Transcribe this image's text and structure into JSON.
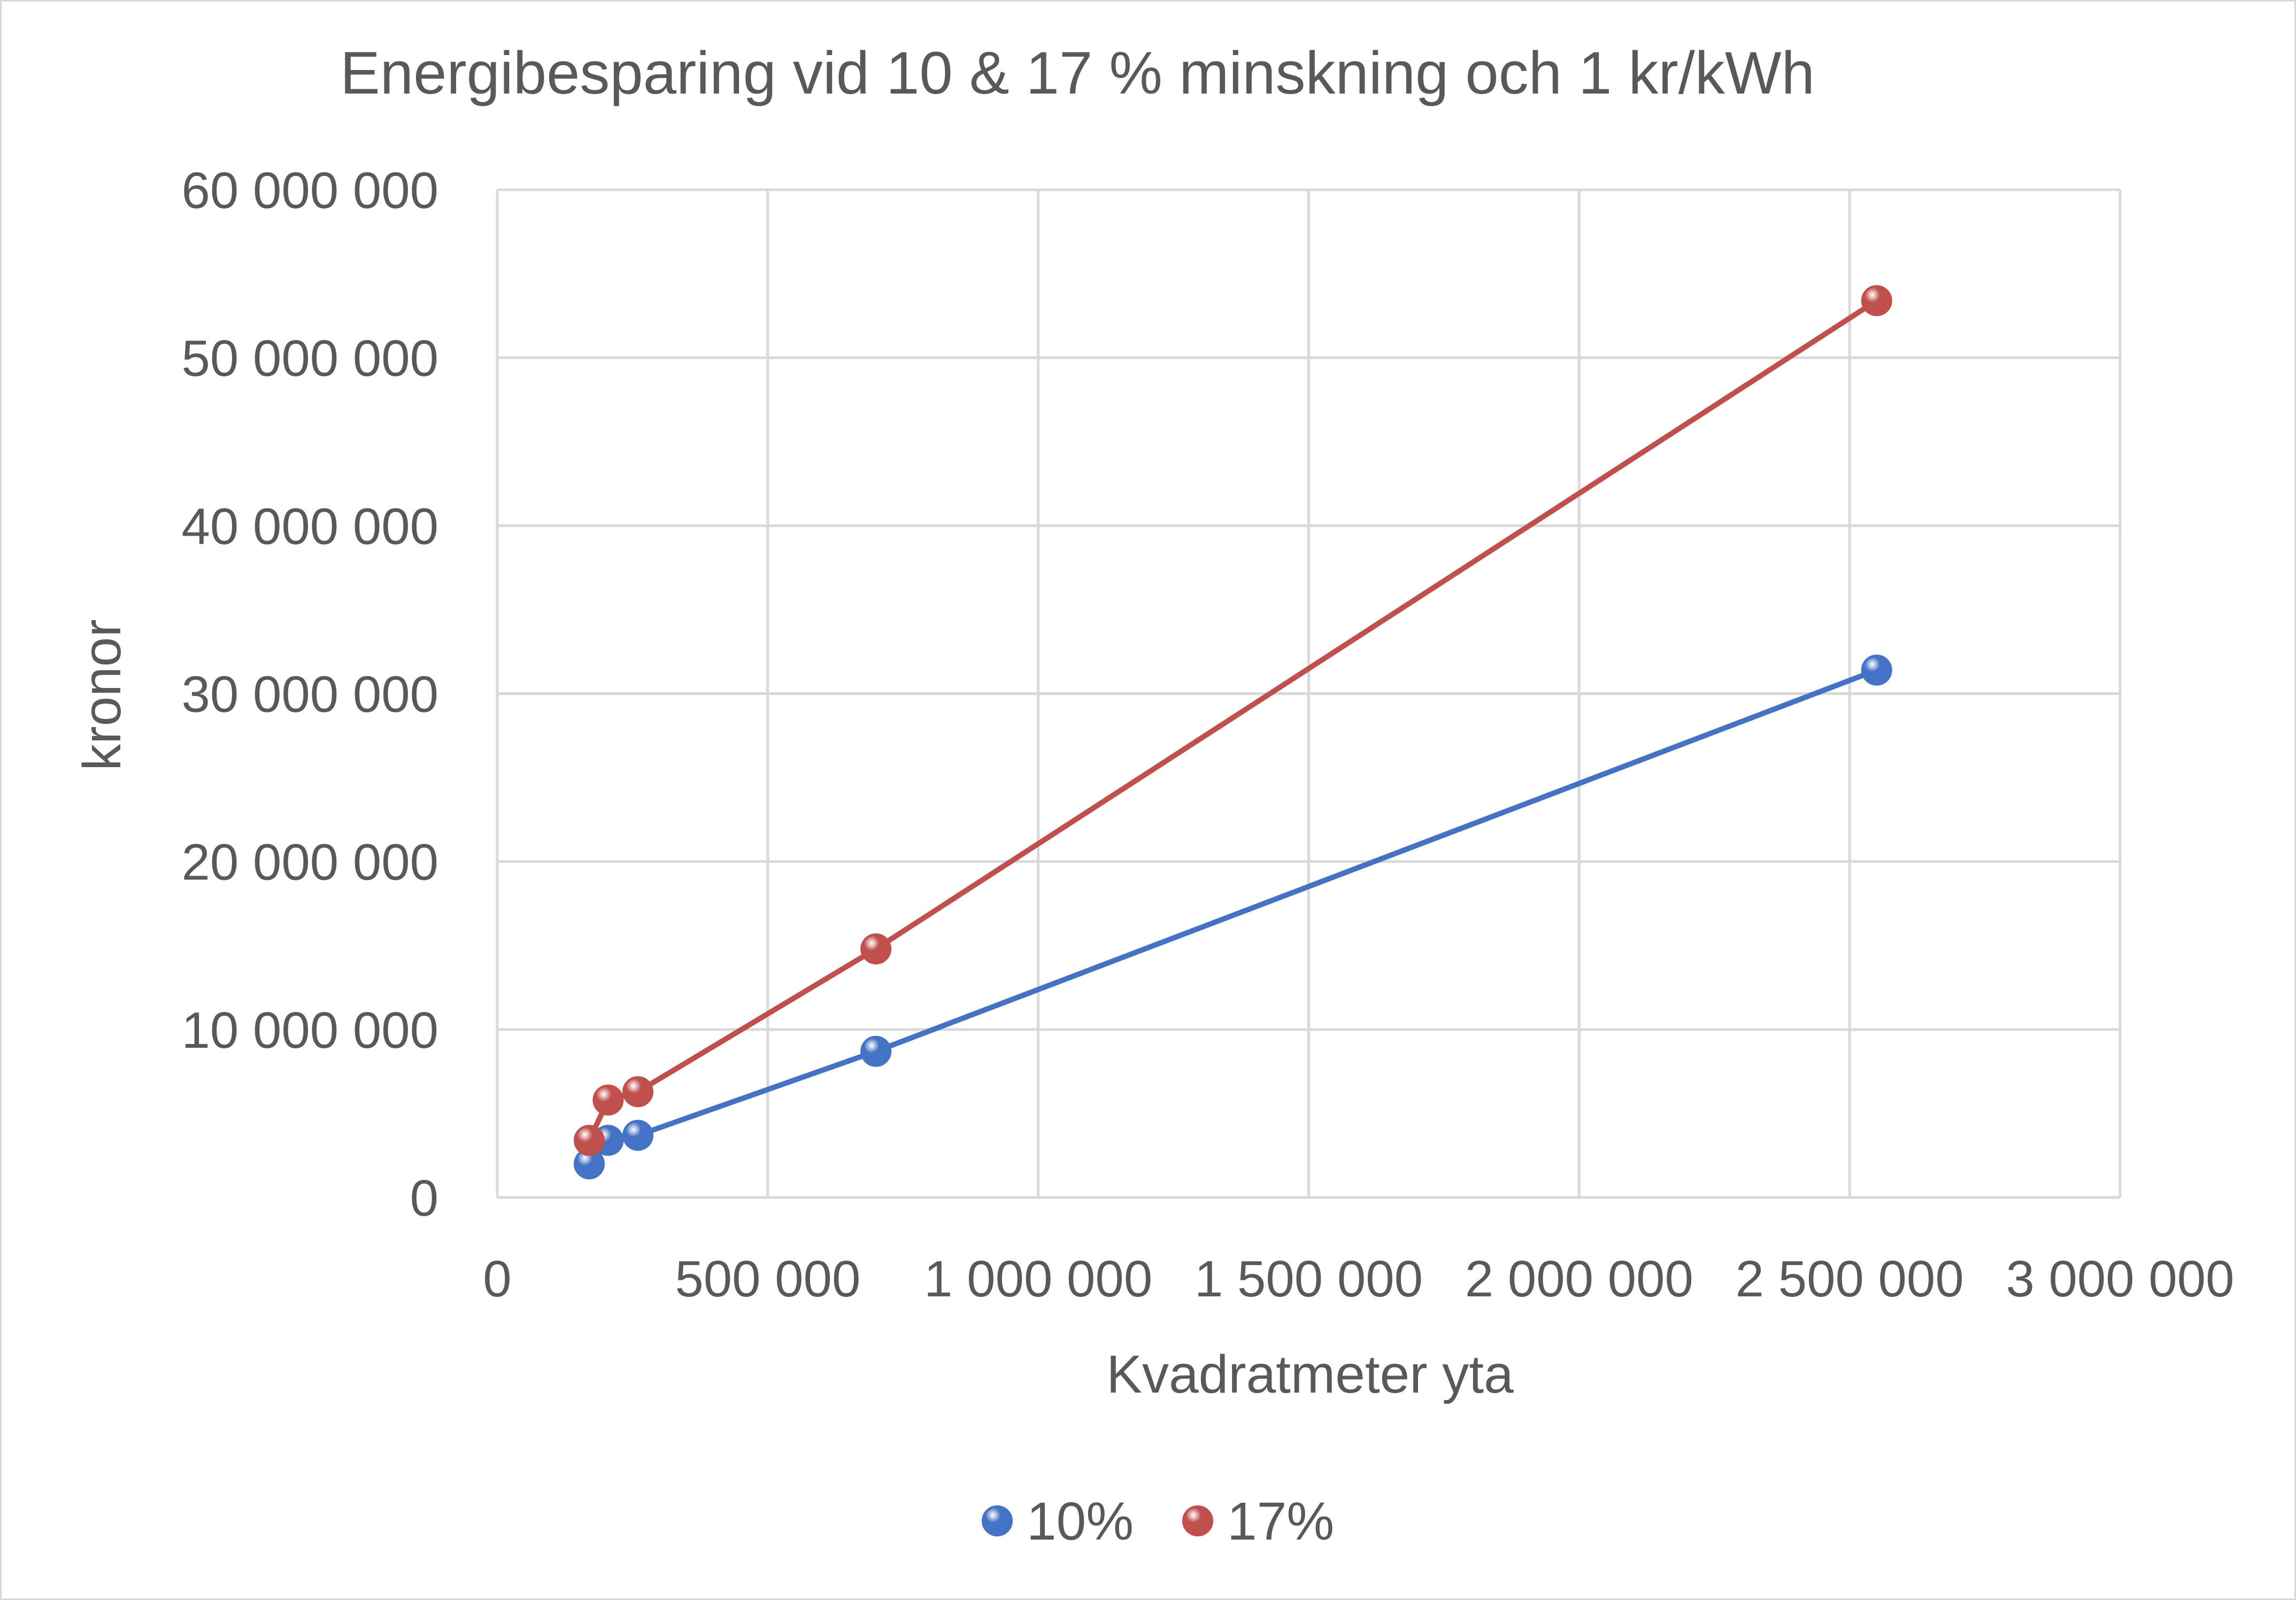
{
  "chart_data": {
    "type": "scatter",
    "title": "Energibesparing vid 10 & 17 % minskning och 1 kr/kWh",
    "xlabel": "Kvadratmeter yta",
    "ylabel": "kronor",
    "xlim": [
      0,
      3000000
    ],
    "ylim": [
      0,
      60000000
    ],
    "x_ticks": [
      0,
      500000,
      1000000,
      1500000,
      2000000,
      2500000,
      3000000
    ],
    "x_tick_labels": [
      "0",
      "500 000",
      "1 000 000",
      "1 500 000",
      "2 000 000",
      "2 500 000",
      "3 000 000"
    ],
    "y_ticks": [
      0,
      10000000,
      20000000,
      30000000,
      40000000,
      50000000,
      60000000
    ],
    "y_tick_labels": [
      "0",
      "10 000 000",
      "20 000 000",
      "30 000 000",
      "40 000 000",
      "50 000 000",
      "60 000 000"
    ],
    "grid": true,
    "legend_position": "bottom",
    "series": [
      {
        "name": "10%",
        "color": "#4472c4",
        "lines": true,
        "points": [
          {
            "x": 170000,
            "y": 2000000
          },
          {
            "x": 205000,
            "y": 3400000
          },
          {
            "x": 260000,
            "y": 3700000
          },
          {
            "x": 700000,
            "y": 8700000
          },
          {
            "x": 2550000,
            "y": 31400000
          }
        ]
      },
      {
        "name": "17%",
        "color": "#c0504d",
        "lines": true,
        "points": [
          {
            "x": 170000,
            "y": 3400000
          },
          {
            "x": 205000,
            "y": 5800000
          },
          {
            "x": 260000,
            "y": 6300000
          },
          {
            "x": 700000,
            "y": 14800000
          },
          {
            "x": 2550000,
            "y": 53400000
          }
        ]
      }
    ]
  }
}
